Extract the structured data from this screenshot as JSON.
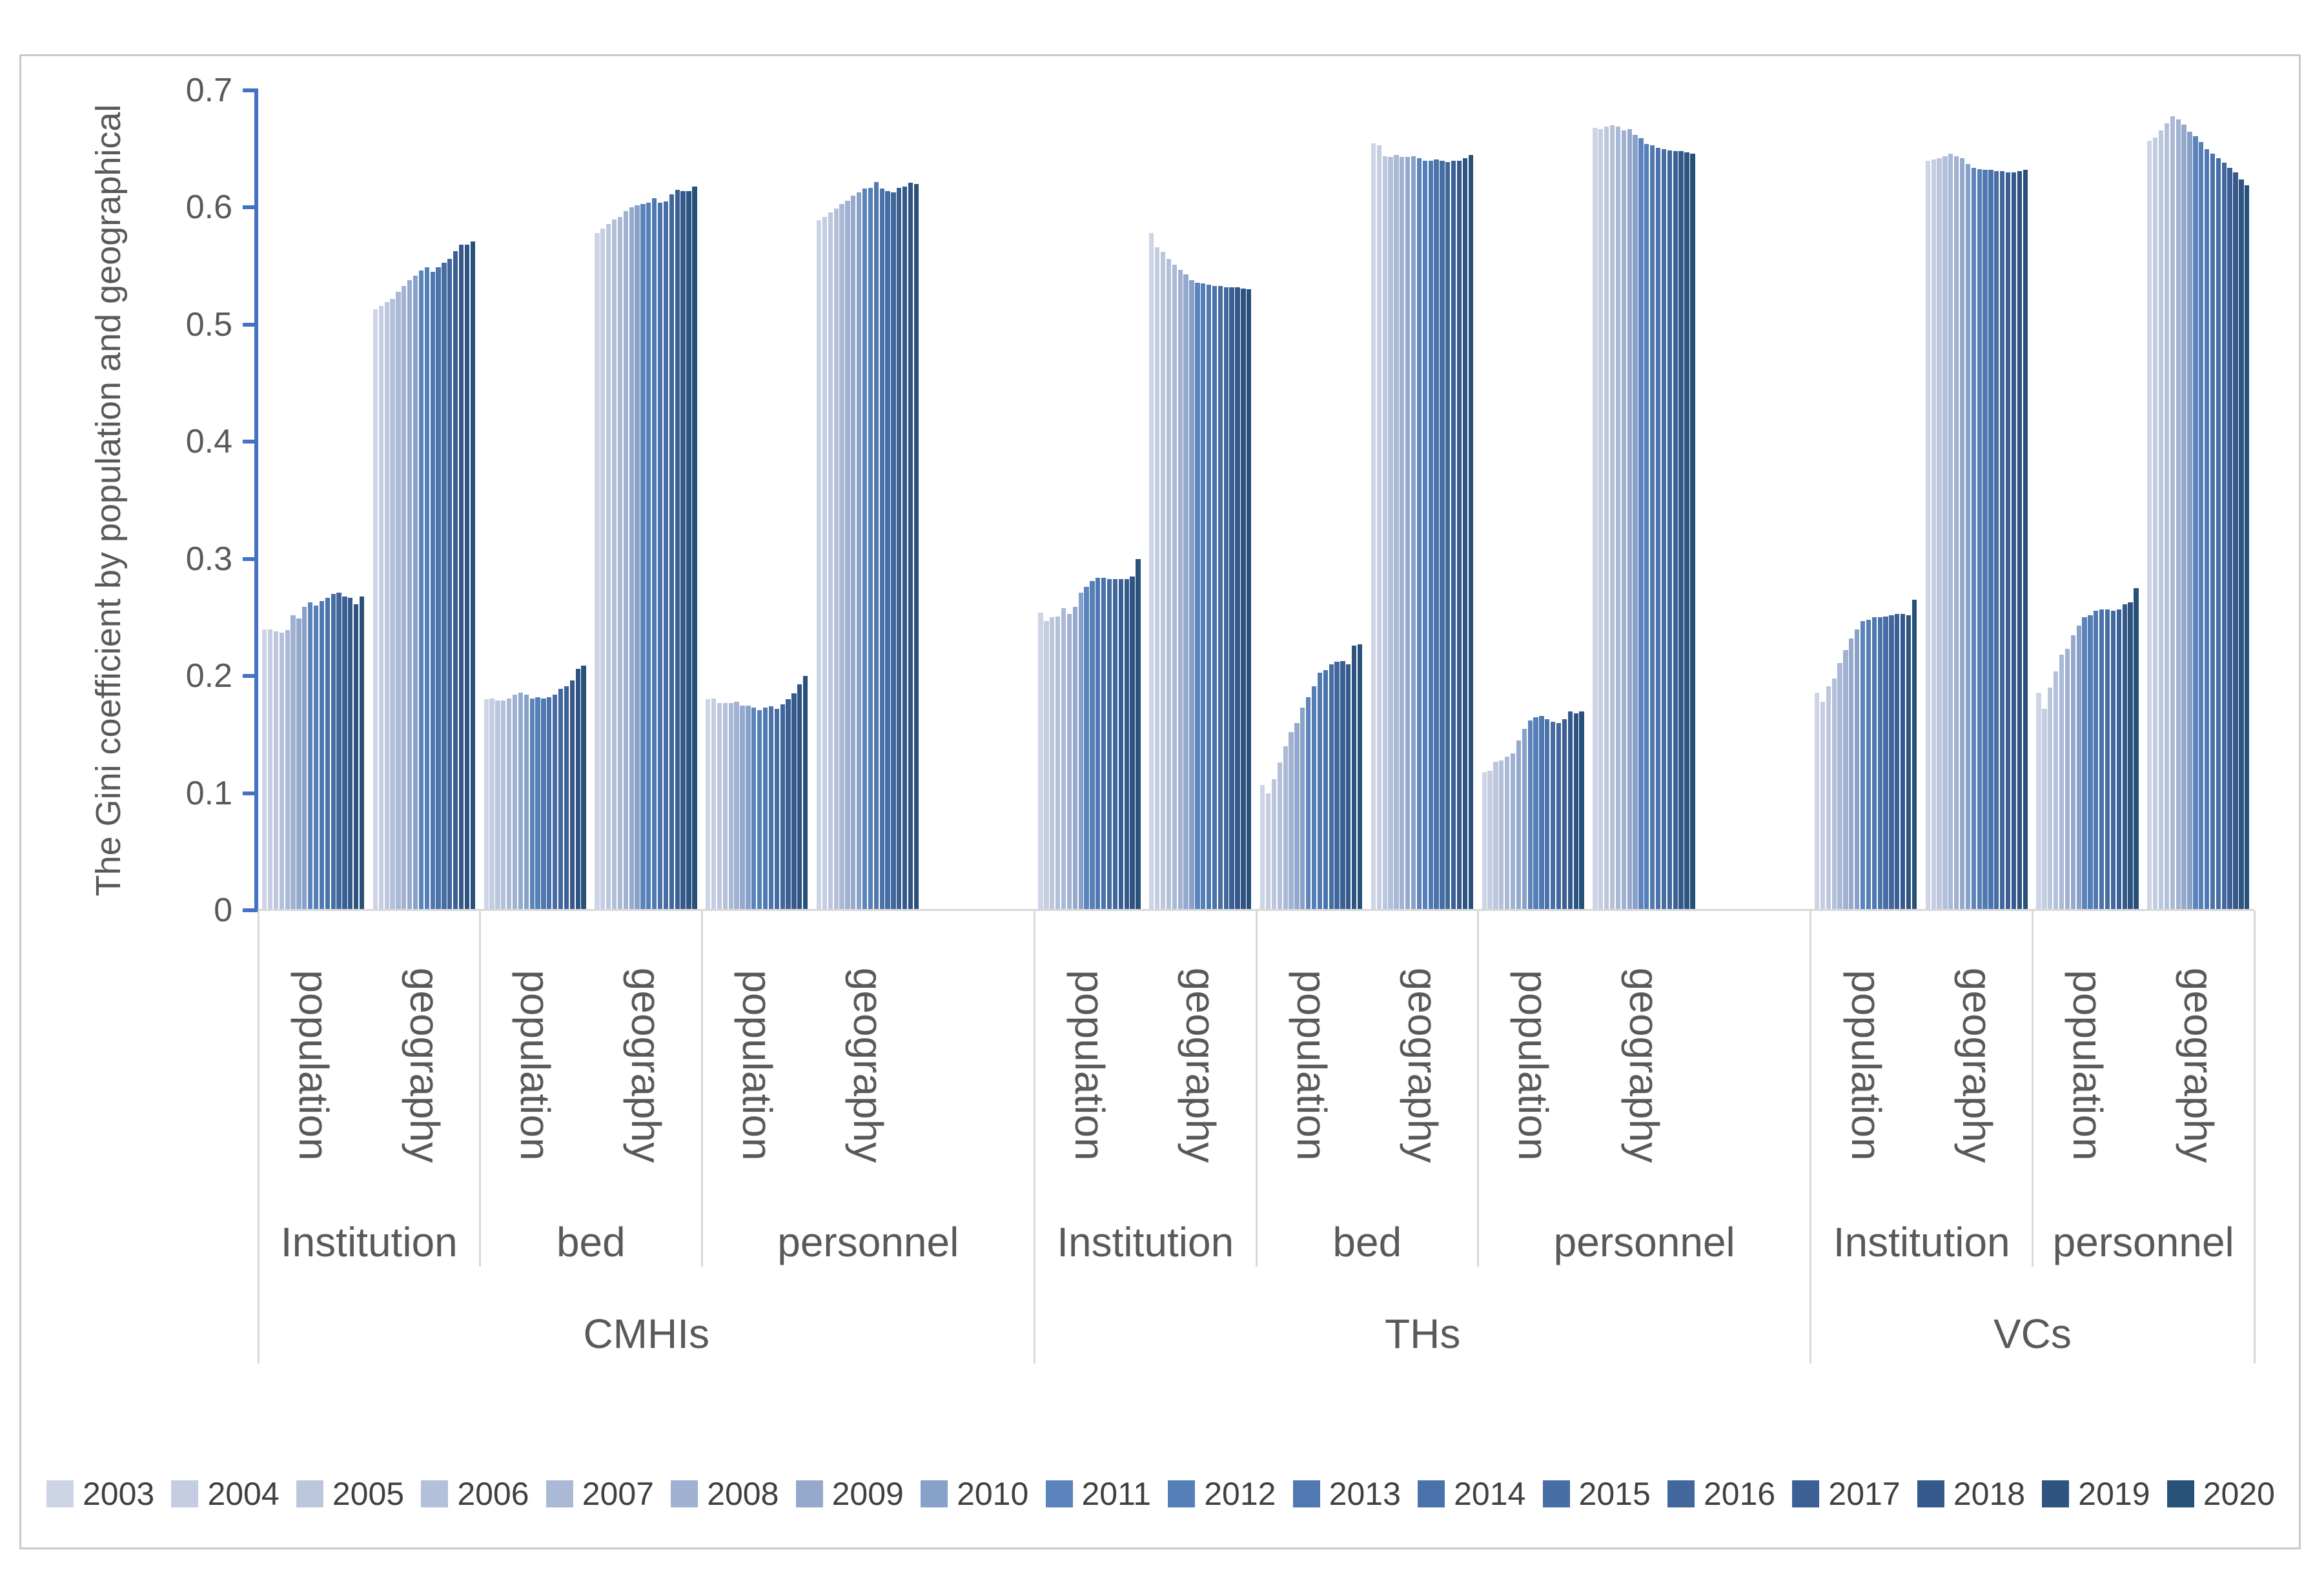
{
  "chart_data": {
    "type": "bar",
    "title": "",
    "ylabel": "The Gini coefficient by population and geographical",
    "xlabel": "",
    "ylim": [
      0,
      0.7
    ],
    "yticks": [
      "0",
      "0.1",
      "0.2",
      "0.3",
      "0.4",
      "0.5",
      "0.6",
      "0.7"
    ],
    "grid": false,
    "legend_position": "bottom",
    "axis_color": "#4472c4",
    "label_color": "#595959",
    "legend_text_color": "#404040",
    "divider_color": "#d9d9d9",
    "years": [
      "2003",
      "2004",
      "2005",
      "2006",
      "2007",
      "2008",
      "2009",
      "2010",
      "2011",
      "2012",
      "2013",
      "2014",
      "2015",
      "2016",
      "2017",
      "2018",
      "2019",
      "2020"
    ],
    "year_colors": [
      "#cdd4e5",
      "#c4cde1",
      "#bcc7dd",
      "#b3c0d9",
      "#aab9d5",
      "#a0b1d1",
      "#95a9cd",
      "#88a1c9",
      "#5b84bc",
      "#557fb7",
      "#5079b1",
      "#4b73ab",
      "#466da4",
      "#41679d",
      "#3c6095",
      "#36598c",
      "#2f5481",
      "#275179"
    ],
    "slot_sequence": [
      0,
      1,
      2,
      3,
      4,
      5,
      null,
      6,
      7,
      8,
      9,
      10,
      11,
      null,
      12,
      13,
      14,
      15
    ],
    "groups": [
      {
        "org": "CMHIs",
        "category": "Institution",
        "basis": "population",
        "values": [
          0.24,
          0.24,
          0.238,
          0.237,
          0.239,
          0.252,
          0.249,
          0.259,
          0.263,
          0.26,
          0.264,
          0.267,
          0.27,
          0.271,
          0.268,
          0.267,
          0.261,
          0.268
        ]
      },
      {
        "org": "CMHIs",
        "category": "Institution",
        "basis": "geography",
        "values": [
          0.513,
          0.516,
          0.519,
          0.522,
          0.528,
          0.533,
          0.538,
          0.542,
          0.546,
          0.549,
          0.545,
          0.549,
          0.553,
          0.556,
          0.563,
          0.568,
          0.568,
          0.571
        ]
      },
      {
        "org": "CMHIs",
        "category": "bed",
        "basis": "population",
        "values": [
          0.18,
          0.181,
          0.179,
          0.179,
          0.181,
          0.184,
          0.186,
          0.184,
          0.181,
          0.182,
          0.181,
          0.182,
          0.184,
          0.189,
          0.191,
          0.196,
          0.206,
          0.209
        ]
      },
      {
        "org": "CMHIs",
        "category": "bed",
        "basis": "geography",
        "values": [
          0.578,
          0.582,
          0.586,
          0.59,
          0.592,
          0.597,
          0.6,
          0.602,
          0.603,
          0.604,
          0.608,
          0.604,
          0.605,
          0.611,
          0.615,
          0.614,
          0.614,
          0.618
        ]
      },
      {
        "org": "CMHIs",
        "category": "personnel",
        "basis": "population",
        "values": [
          0.18,
          0.181,
          0.177,
          0.177,
          0.177,
          0.178,
          0.175,
          0.175,
          0.173,
          0.171,
          0.173,
          0.174,
          0.172,
          0.176,
          0.18,
          0.185,
          0.193,
          0.2
        ]
      },
      {
        "org": "CMHIs",
        "category": "personnel",
        "basis": "geography",
        "values": [
          0.589,
          0.592,
          0.596,
          0.599,
          0.603,
          0.606,
          0.61,
          0.613,
          0.616,
          0.617,
          0.622,
          0.616,
          0.614,
          0.613,
          0.617,
          0.618,
          0.621,
          0.62
        ]
      },
      {
        "org": "THs",
        "category": "Institution",
        "basis": "population",
        "values": [
          0.254,
          0.247,
          0.25,
          0.251,
          0.258,
          0.253,
          0.259,
          0.271,
          0.276,
          0.281,
          0.284,
          0.284,
          0.283,
          0.283,
          0.283,
          0.283,
          0.285,
          0.3
        ]
      },
      {
        "org": "THs",
        "category": "Institution",
        "basis": "geography",
        "values": [
          0.578,
          0.566,
          0.562,
          0.556,
          0.551,
          0.547,
          0.543,
          0.538,
          0.536,
          0.535,
          0.534,
          0.533,
          0.533,
          0.532,
          0.532,
          0.532,
          0.531,
          0.53
        ]
      },
      {
        "org": "THs",
        "category": "bed",
        "basis": "population",
        "values": [
          0.107,
          0.1,
          0.112,
          0.126,
          0.14,
          0.152,
          0.16,
          0.173,
          0.182,
          0.191,
          0.203,
          0.205,
          0.21,
          0.212,
          0.213,
          0.21,
          0.226,
          0.227
        ]
      },
      {
        "org": "THs",
        "category": "bed",
        "basis": "geography",
        "values": [
          0.655,
          0.653,
          0.644,
          0.643,
          0.645,
          0.643,
          0.643,
          0.644,
          0.642,
          0.64,
          0.64,
          0.641,
          0.64,
          0.639,
          0.64,
          0.64,
          0.642,
          0.645
        ]
      },
      {
        "org": "THs",
        "category": "personnel",
        "basis": "population",
        "values": [
          0.118,
          0.119,
          0.127,
          0.128,
          0.131,
          0.134,
          0.145,
          0.155,
          0.162,
          0.165,
          0.166,
          0.163,
          0.161,
          0.16,
          0.163,
          0.17,
          0.168,
          0.17
        ]
      },
      {
        "org": "THs",
        "category": "personnel",
        "basis": "geography",
        "values": [
          0.668,
          0.667,
          0.669,
          0.67,
          0.669,
          0.666,
          0.667,
          0.662,
          0.659,
          0.654,
          0.653,
          0.651,
          0.65,
          0.649,
          0.648,
          0.648,
          0.647,
          0.646
        ]
      },
      {
        "org": "VCs",
        "category": "Institution",
        "basis": "population",
        "values": [
          0.186,
          0.178,
          0.191,
          0.198,
          0.211,
          0.222,
          0.232,
          0.24,
          0.247,
          0.248,
          0.25,
          0.25,
          0.251,
          0.252,
          0.253,
          0.253,
          0.252,
          0.265
        ]
      },
      {
        "org": "VCs",
        "category": "Institution",
        "basis": "geography",
        "values": [
          0.64,
          0.641,
          0.642,
          0.644,
          0.646,
          0.644,
          0.642,
          0.637,
          0.634,
          0.633,
          0.632,
          0.632,
          0.631,
          0.631,
          0.63,
          0.63,
          0.631,
          0.632
        ]
      },
      {
        "org": "VCs",
        "category": "personnel",
        "basis": "population",
        "values": [
          0.186,
          0.172,
          0.19,
          0.204,
          0.218,
          0.223,
          0.235,
          0.243,
          0.25,
          0.252,
          0.256,
          0.257,
          0.257,
          0.256,
          0.257,
          0.261,
          0.263,
          0.275
        ]
      },
      {
        "org": "VCs",
        "category": "personnel",
        "basis": "geography",
        "values": [
          0.657,
          0.66,
          0.666,
          0.672,
          0.678,
          0.675,
          0.671,
          0.665,
          0.661,
          0.656,
          0.65,
          0.646,
          0.642,
          0.638,
          0.634,
          0.63,
          0.624,
          0.619
        ]
      }
    ],
    "category_cells": [
      {
        "label": "Institution",
        "startSlot": 0,
        "endSlot": 2
      },
      {
        "label": "bed",
        "startSlot": 2,
        "endSlot": 4
      },
      {
        "label": "personnel",
        "startSlot": 4,
        "endSlot": 7
      },
      {
        "label": "Institution",
        "startSlot": 7,
        "endSlot": 9
      },
      {
        "label": "bed",
        "startSlot": 9,
        "endSlot": 11
      },
      {
        "label": "personnel",
        "startSlot": 11,
        "endSlot": 14
      },
      {
        "label": "Institution",
        "startSlot": 14,
        "endSlot": 16
      },
      {
        "label": "personnel",
        "startSlot": 16,
        "endSlot": 18
      }
    ],
    "org_cells": [
      {
        "label": "CMHIs",
        "startSlot": 0,
        "endSlot": 7
      },
      {
        "label": "THs",
        "startSlot": 7,
        "endSlot": 14
      },
      {
        "label": "VCs",
        "startSlot": 14,
        "endSlot": 18
      }
    ]
  }
}
